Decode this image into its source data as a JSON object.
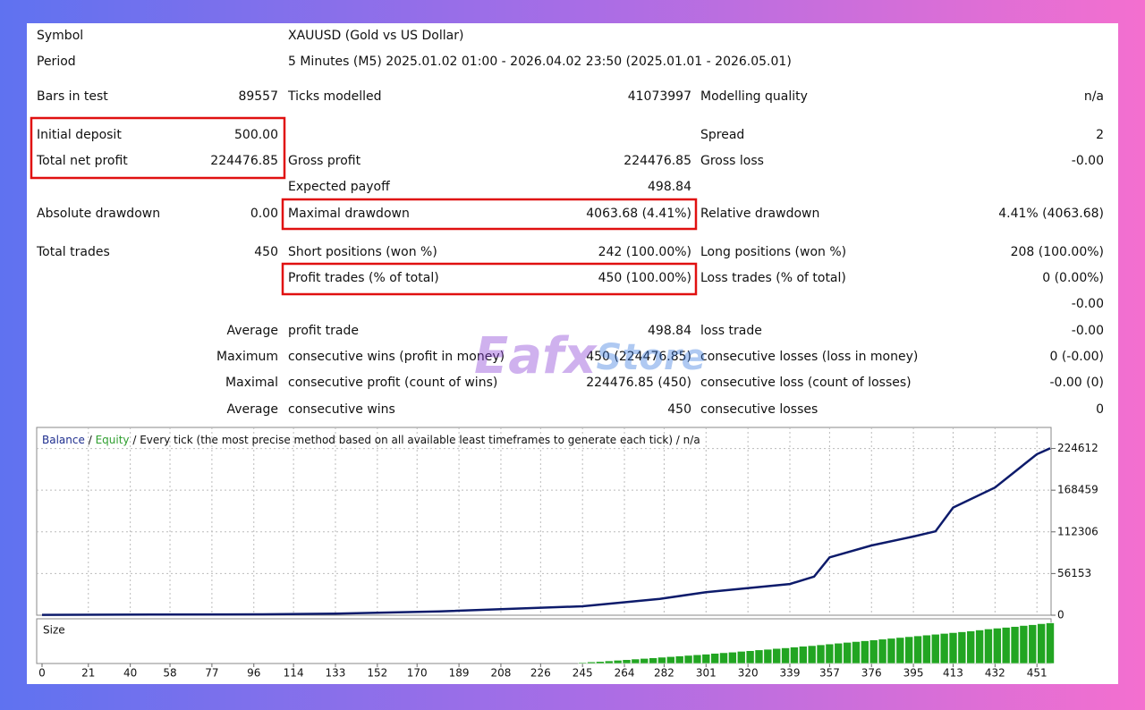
{
  "header": [
    {
      "label": "Symbol",
      "value": "XAUUSD (Gold vs US Dollar)"
    },
    {
      "label": "Period",
      "value": "5 Minutes (M5) 2025.01.02 01:00 - 2026.04.02 23:50 (2025.01.01 - 2026.05.01)"
    }
  ],
  "rows": [
    [
      {
        "label": "Bars in test",
        "value": "89557"
      },
      {
        "label": "Ticks modelled",
        "value": "41073997"
      },
      {
        "label": "Modelling quality",
        "value": "n/a"
      }
    ],
    [
      {
        "label": "Initial deposit",
        "value": "500.00"
      },
      null,
      {
        "label": "Spread",
        "value": "2"
      }
    ],
    [
      {
        "label": "Total net profit",
        "value": "224476.85"
      },
      {
        "label": "Gross profit",
        "value": "224476.85"
      },
      {
        "label": "Gross loss",
        "value": "-0.00"
      }
    ],
    [
      null,
      {
        "label": "Expected payoff",
        "value": "498.84"
      },
      null
    ],
    [
      {
        "label": "Absolute drawdown",
        "value": "0.00"
      },
      {
        "label": "Maximal drawdown",
        "value": "4063.68 (4.41%)"
      },
      {
        "label": "Relative drawdown",
        "value": "4.41% (4063.68)"
      }
    ],
    [
      {
        "label": "Total trades",
        "value": "450"
      },
      {
        "label": "Short positions (won %)",
        "value": "242 (100.00%)"
      },
      {
        "label": "Long positions (won %)",
        "value": "208 (100.00%)"
      }
    ],
    [
      null,
      {
        "label": "Profit trades (% of total)",
        "value": "450 (100.00%)"
      },
      {
        "label": "Loss trades (% of total)",
        "value": "0 (0.00%)"
      }
    ],
    [
      null,
      null,
      {
        "value": "-0.00"
      }
    ],
    [
      {
        "label": "Average"
      },
      {
        "label": "profit trade",
        "value": "498.84"
      },
      {
        "label": "loss trade",
        "value": "-0.00"
      }
    ],
    [
      {
        "label": "Maximum"
      },
      {
        "label": "consecutive wins (profit in money)",
        "value": "450 (224476.85)"
      },
      {
        "label": "consecutive losses (loss in money)",
        "value": "0 (-0.00)"
      }
    ],
    [
      {
        "label": "Maximal"
      },
      {
        "label": "consecutive profit (count of wins)",
        "value": "224476.85 (450)"
      },
      {
        "label": "consecutive loss (count of losses)",
        "value": "-0.00 (0)"
      }
    ],
    [
      {
        "label": "Average"
      },
      {
        "label": "consecutive wins",
        "value": "450"
      },
      {
        "label": "consecutive losses",
        "value": "0"
      }
    ]
  ],
  "watermark": [
    "Eafx",
    "Store"
  ],
  "chart_data": {
    "type": "line",
    "legend": [
      {
        "name": "Balance",
        "color": "#1f2f8f"
      },
      {
        "name": "Equity",
        "color": "#2e9e2e"
      }
    ],
    "separator": "/",
    "description": "/ Every tick (the most precise method based on all available least timeframes to generate each tick) / n/a",
    "series": [
      {
        "name": "Balance",
        "color": "#0d1b6b",
        "x": [
          0,
          50,
          100,
          133,
          180,
          245,
          280,
          301,
          339,
          350,
          357,
          376,
          395,
          405,
          413,
          432,
          451,
          457
        ],
        "values": [
          500,
          800,
          1200,
          2000,
          5000,
          12000,
          22000,
          31000,
          42000,
          52000,
          78000,
          94000,
          106000,
          113000,
          145000,
          172000,
          217000,
          224977
        ]
      }
    ],
    "xlim": [
      0,
      457
    ],
    "xticks": [
      0,
      21,
      40,
      58,
      77,
      96,
      114,
      133,
      152,
      170,
      189,
      208,
      226,
      245,
      264,
      282,
      301,
      320,
      339,
      357,
      376,
      395,
      413,
      432,
      451
    ],
    "ylim": [
      0,
      253000
    ],
    "yticks": [
      0,
      56153,
      112306,
      168459,
      224612
    ],
    "grid": true,
    "size_chart": {
      "label": "Size",
      "color": "#22a522",
      "ylim": [
        0,
        2.2
      ],
      "x": [
        245,
        249,
        253,
        257,
        261,
        265,
        269,
        273,
        277,
        281,
        285,
        289,
        293,
        297,
        301,
        305,
        309,
        313,
        317,
        321,
        325,
        329,
        333,
        337,
        341,
        345,
        349,
        353,
        357,
        361,
        365,
        369,
        373,
        377,
        381,
        385,
        389,
        393,
        397,
        401,
        405,
        409,
        413,
        417,
        421,
        425,
        429,
        433,
        437,
        441,
        445,
        449,
        453,
        457
      ],
      "values": [
        0.05,
        0.08,
        0.1,
        0.13,
        0.16,
        0.19,
        0.22,
        0.25,
        0.28,
        0.31,
        0.34,
        0.37,
        0.4,
        0.43,
        0.46,
        0.5,
        0.53,
        0.56,
        0.6,
        0.63,
        0.67,
        0.7,
        0.74,
        0.77,
        0.81,
        0.85,
        0.88,
        0.92,
        0.96,
        1.0,
        1.04,
        1.08,
        1.12,
        1.16,
        1.2,
        1.24,
        1.28,
        1.32,
        1.36,
        1.4,
        1.44,
        1.48,
        1.52,
        1.56,
        1.6,
        1.65,
        1.7,
        1.74,
        1.78,
        1.82,
        1.87,
        1.91,
        1.96,
        2.0
      ]
    }
  }
}
